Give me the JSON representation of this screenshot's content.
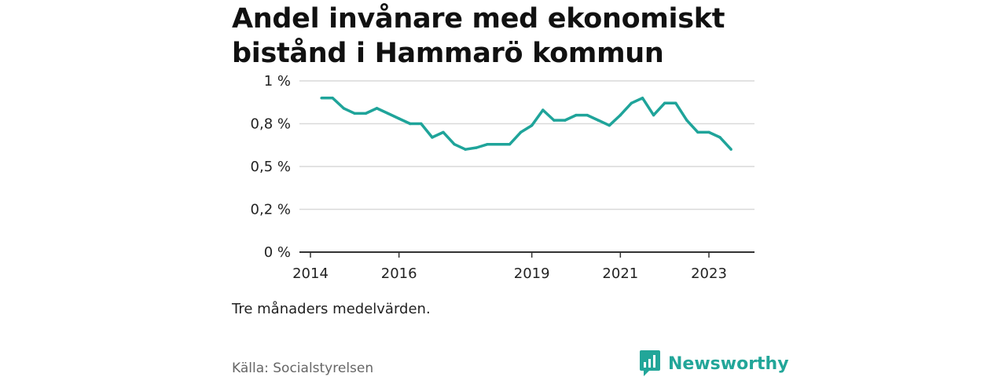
{
  "title": "Andel invånare med ekonomiskt bistånd i Hammarö kommun",
  "note": "Tre månaders medelvärden.",
  "source": "Källa: Socialstyrelsen",
  "brand": {
    "name": "Newsworthy",
    "icon": "newsworthy-logo-icon",
    "color": "#22a699"
  },
  "chart_data": {
    "type": "line",
    "title": "Andel invånare med ekonomiskt bistånd i Hammarö kommun",
    "xlabel": "",
    "ylabel": "",
    "x_ticks": [
      "2014",
      "2016",
      "2019",
      "2021",
      "2023"
    ],
    "y_ticks": [
      "0 %",
      "0,2 %",
      "0,5 %",
      "0,8 %",
      "1 %"
    ],
    "ylim": [
      0,
      1
    ],
    "grid": true,
    "line_color": "#1fa49a",
    "series": [
      {
        "name": "",
        "points": [
          {
            "x": "2014-04",
            "y": 0.9
          },
          {
            "x": "2014-07",
            "y": 0.9
          },
          {
            "x": "2014-10",
            "y": 0.84
          },
          {
            "x": "2015-01",
            "y": 0.81
          },
          {
            "x": "2015-04",
            "y": 0.81
          },
          {
            "x": "2015-07",
            "y": 0.84
          },
          {
            "x": "2015-10",
            "y": 0.81
          },
          {
            "x": "2016-01",
            "y": 0.78
          },
          {
            "x": "2016-04",
            "y": 0.75
          },
          {
            "x": "2016-07",
            "y": 0.75
          },
          {
            "x": "2016-10",
            "y": 0.67
          },
          {
            "x": "2017-01",
            "y": 0.7
          },
          {
            "x": "2017-04",
            "y": 0.63
          },
          {
            "x": "2017-07",
            "y": 0.6
          },
          {
            "x": "2017-10",
            "y": 0.61
          },
          {
            "x": "2018-01",
            "y": 0.63
          },
          {
            "x": "2018-04",
            "y": 0.63
          },
          {
            "x": "2018-07",
            "y": 0.63
          },
          {
            "x": "2018-10",
            "y": 0.7
          },
          {
            "x": "2019-01",
            "y": 0.74
          },
          {
            "x": "2019-04",
            "y": 0.83
          },
          {
            "x": "2019-07",
            "y": 0.77
          },
          {
            "x": "2019-10",
            "y": 0.77
          },
          {
            "x": "2020-01",
            "y": 0.8
          },
          {
            "x": "2020-04",
            "y": 0.8
          },
          {
            "x": "2020-07",
            "y": 0.77
          },
          {
            "x": "2020-10",
            "y": 0.74
          },
          {
            "x": "2021-01",
            "y": 0.8
          },
          {
            "x": "2021-04",
            "y": 0.87
          },
          {
            "x": "2021-07",
            "y": 0.9
          },
          {
            "x": "2021-10",
            "y": 0.8
          },
          {
            "x": "2022-01",
            "y": 0.87
          },
          {
            "x": "2022-04",
            "y": 0.87
          },
          {
            "x": "2022-07",
            "y": 0.77
          },
          {
            "x": "2022-10",
            "y": 0.7
          },
          {
            "x": "2023-01",
            "y": 0.7
          },
          {
            "x": "2023-04",
            "y": 0.67
          },
          {
            "x": "2023-07",
            "y": 0.6
          }
        ]
      }
    ]
  }
}
